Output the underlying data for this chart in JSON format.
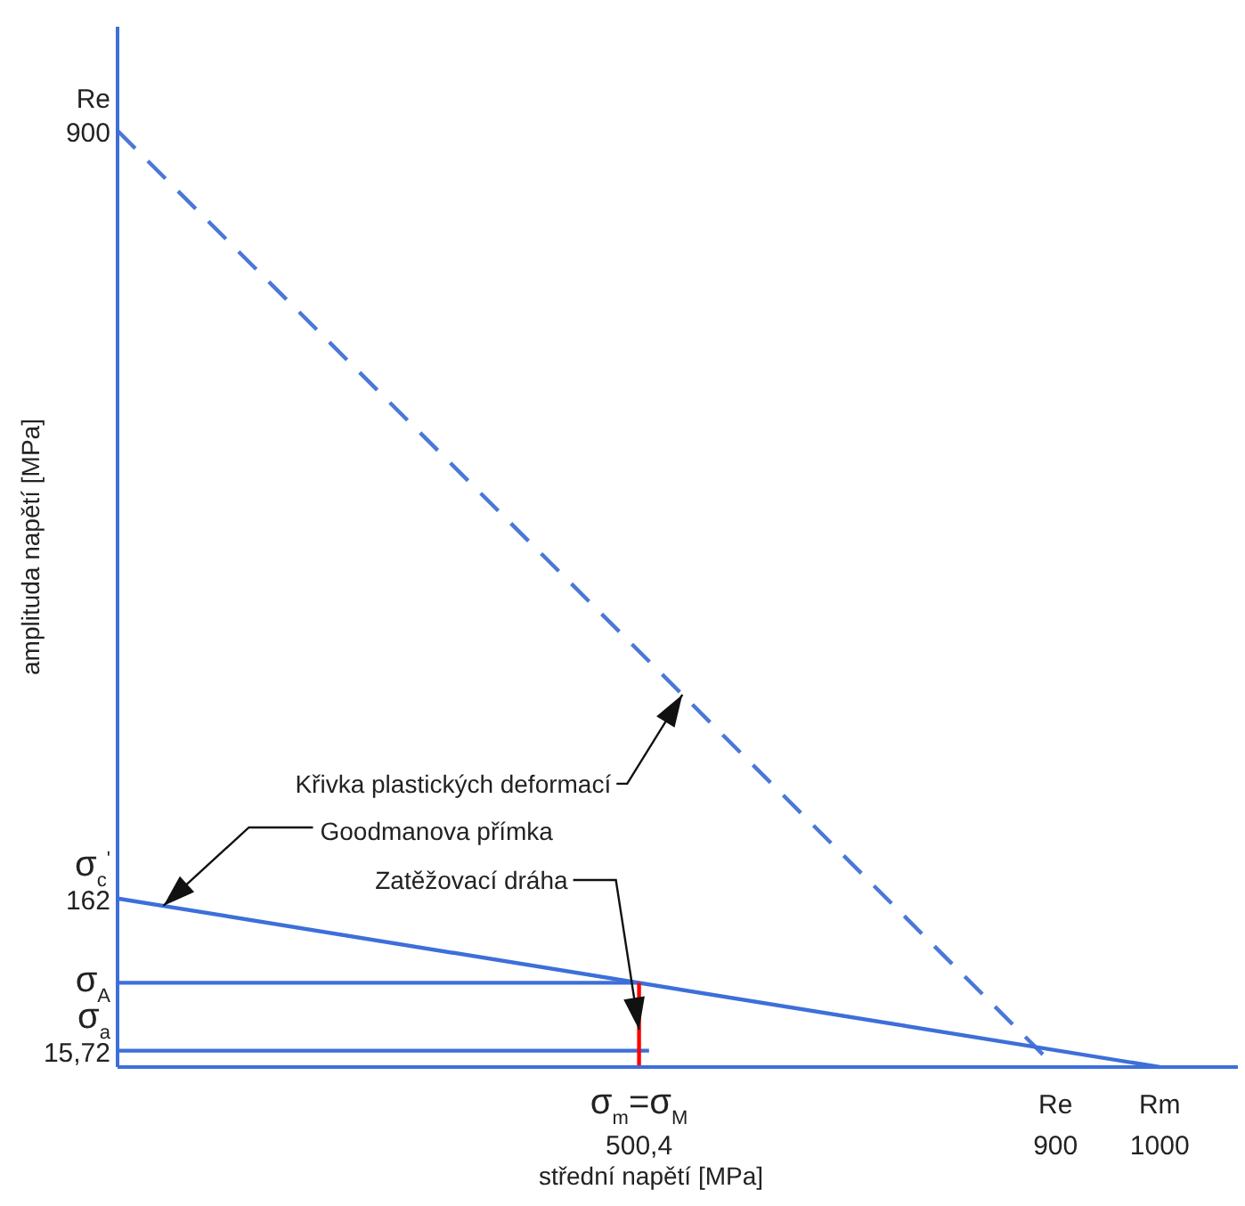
{
  "chart_data": {
    "type": "line",
    "xlabel": "střední napětí [MPa]",
    "ylabel": "amplituda napětí [MPa]",
    "xlim": [
      0,
      1075
    ],
    "ylim": [
      0,
      1000
    ],
    "xticks": [
      {
        "value": 500.4,
        "label": "500,4"
      },
      900,
      1000
    ],
    "yticks": [
      900,
      162,
      {
        "value": 15.72,
        "label": "15,72"
      }
    ],
    "grid": false,
    "marker": "none",
    "series": [
      {
        "type": "line",
        "x": [
          0,
          900
        ],
        "values": [
          900,
          0
        ],
        "color": "#4a78d8",
        "line_style": "dashed"
      },
      {
        "type": "line",
        "x": [
          0,
          1000
        ],
        "values": [
          162,
          0
        ],
        "color": "#3d6fd9",
        "line_style": "solid"
      },
      {
        "type": "line",
        "x": [
          0,
          500.4
        ],
        "values": [
          81,
          81
        ],
        "color": "#3d6fd9",
        "line_style": "solid"
      },
      {
        "type": "line",
        "x": [
          0,
          510
        ],
        "values": [
          15.72,
          15.72
        ],
        "color": "#3d6fd9",
        "line_style": "solid"
      },
      {
        "type": "line",
        "x": [
          500.4,
          500.4
        ],
        "values": [
          0,
          81
        ],
        "color": "#ff0000",
        "line_style": "solid"
      }
    ],
    "annotations": [
      {
        "text": "Křivka plastických deformací",
        "x": 542,
        "y": 358
      },
      {
        "text": "Goodmanova přímka",
        "x": 44,
        "y": 155
      },
      {
        "text": "Zatěžovací dráha",
        "x": 500.4,
        "y": 36
      },
      {
        "text": "Re",
        "x": 0,
        "y": 900
      },
      {
        "text": "σ$_{c}$$^{'}$",
        "x": 0,
        "y": 162
      },
      {
        "text": "σ$_{A}$",
        "x": 0,
        "y": 81
      },
      {
        "text": "σ$_{a}$",
        "x": 0,
        "y": 15.72
      },
      {
        "text": "σ$_{m}$=σ$_{M}$",
        "x": 500.4,
        "y": 0
      },
      {
        "text": "Re",
        "x": 900,
        "y": 0
      },
      {
        "text": "Rm",
        "x": 1000,
        "y": 0
      }
    ]
  }
}
